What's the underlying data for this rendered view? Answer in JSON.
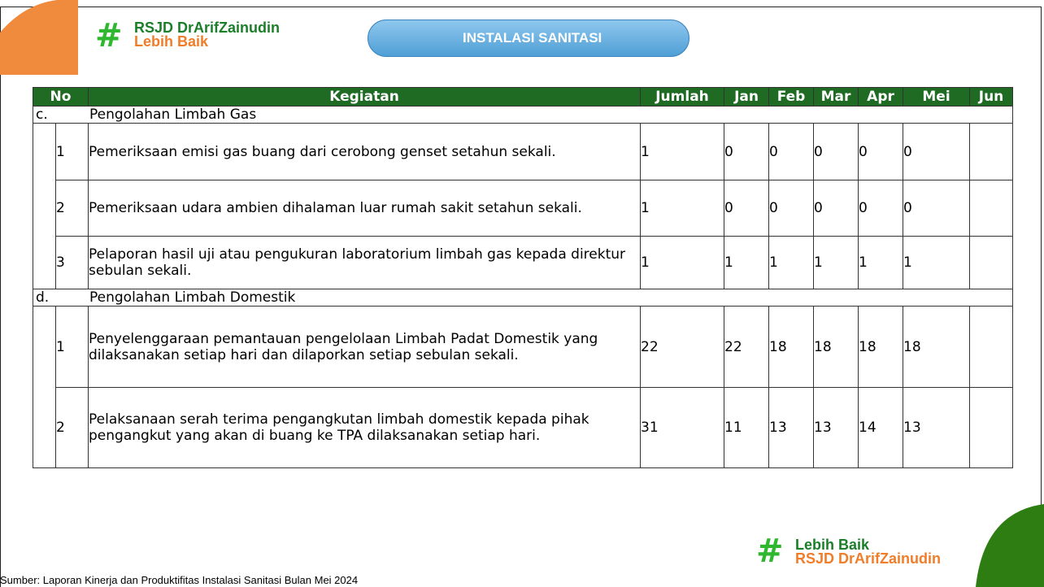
{
  "header": {
    "logo_name": "RSJD DrArifZainudin",
    "logo_tagline": "Lebih Baik",
    "unit": "INSTALASI SANITASI"
  },
  "table": {
    "columns": [
      "No",
      "Kegiatan",
      "Jumlah",
      "Jan",
      "Feb",
      "Mar",
      "Apr",
      "Mei",
      "Jun"
    ],
    "sections": [
      {
        "label": "c.",
        "title": "Pengolahan Limbah Gas",
        "rows": [
          {
            "no": 1,
            "kegiatan": "Pemeriksaan emisi gas buang dari cerobong genset setahun sekali.",
            "values": [
              1,
              0,
              0,
              0,
              0,
              0
            ]
          },
          {
            "no": 2,
            "kegiatan": "Pemeriksaan udara ambien dihalaman luar rumah sakit setahun sekali.",
            "values": [
              1,
              0,
              0,
              0,
              0,
              0
            ]
          },
          {
            "no": 3,
            "kegiatan": "Pelaporan hasil uji atau pengukuran laboratorium limbah gas kepada direktur sebulan sekali.",
            "values": [
              1,
              1,
              1,
              1,
              1,
              1
            ]
          }
        ]
      },
      {
        "label": "d.",
        "title": "Pengolahan Limbah Domestik",
        "rows": [
          {
            "no": 1,
            "kegiatan": "Penyelenggaraan pemantauan pengelolaan Limbah Padat Domestik yang dilaksanakan setiap hari dan dilaporkan setiap sebulan sekali.",
            "values": [
              22,
              22,
              18,
              18,
              18,
              18
            ]
          },
          {
            "no": 2,
            "kegiatan": "Pelaksanaan serah terima pengangkutan limbah domestik kepada pihak pengangkut yang akan di buang ke TPA dilaksanakan setiap hari.",
            "values": [
              31,
              11,
              13,
              13,
              14,
              13
            ]
          }
        ]
      }
    ]
  },
  "footer": {
    "logo_tagline": "Lebih Baik",
    "logo_name": "RSJD DrArifZainudin",
    "source": "Sumber: Laporan Kinerja dan Produktifitas Instalasi Sanitasi Bulan Mei 2024"
  }
}
